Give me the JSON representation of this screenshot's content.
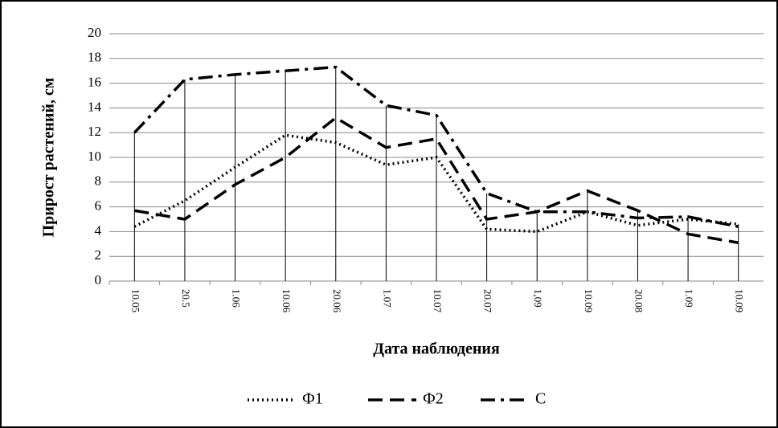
{
  "chart_data": {
    "type": "line",
    "y_label": "Прирост растений, см",
    "x_label": "Дата наблюдения",
    "categories": [
      "10.05",
      "20.5",
      "1.06",
      "10.06",
      "20.06",
      "1.07",
      "10.07",
      "20.07",
      "1,09",
      "10.09",
      "20.08",
      "1.09",
      "10.09"
    ],
    "series": [
      {
        "name": "Ф1",
        "color": "#000000",
        "style": "dotted",
        "values": [
          4.4,
          6.5,
          9.2,
          11.8,
          11.2,
          9.4,
          10,
          4.2,
          4.0,
          5.6,
          4.5,
          5.0,
          4.6
        ]
      },
      {
        "name": "Ф2",
        "color": "#000000",
        "style": "dashed",
        "values": [
          5.7,
          5.0,
          7.8,
          10,
          13.2,
          10.8,
          11.5,
          5,
          5.6,
          7.3,
          5.7,
          3.8,
          3.1
        ]
      },
      {
        "name": "С",
        "color": "#000000",
        "style": "dashdot",
        "values": [
          12,
          16.3,
          16.7,
          17,
          17.3,
          14.2,
          13.4,
          7.1,
          5.6,
          5.6,
          5.1,
          5.2,
          4.4
        ]
      }
    ],
    "ylim": [
      0,
      20
    ],
    "yticks": [
      0,
      2,
      4,
      6,
      8,
      10,
      12,
      14,
      16,
      18,
      20
    ],
    "grid": true,
    "legend": "bottom"
  }
}
